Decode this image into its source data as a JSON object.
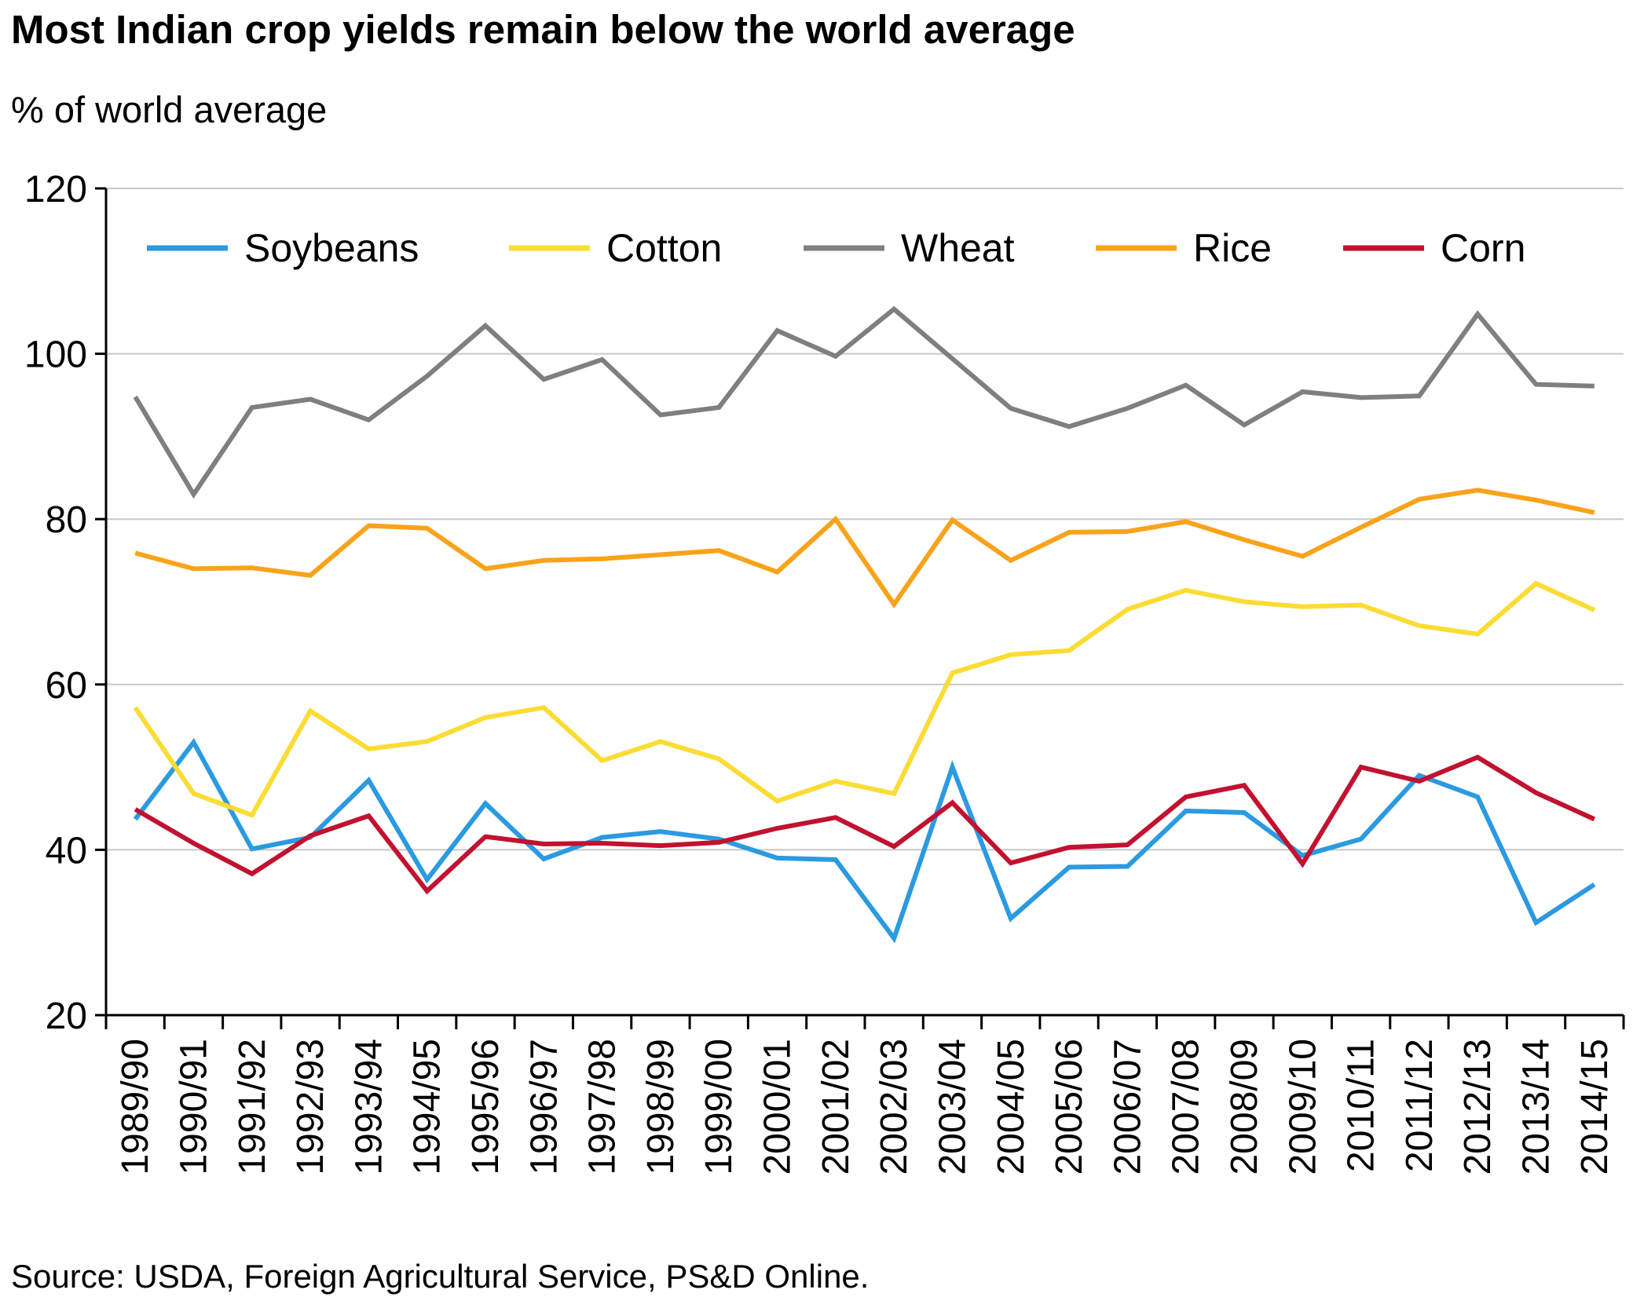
{
  "colors": {
    "soybeans": "#2b9ae0",
    "cotton": "#fbdc34",
    "wheat": "#7f7f7f",
    "rice": "#f9a31b",
    "corn": "#c11230",
    "grid": "#c8c8c8",
    "axis": "#000000"
  },
  "chart_data": {
    "type": "line",
    "title": "Most Indian crop yields remain below the world average",
    "ylabel": "% of world average",
    "xlabel": "",
    "source": "Source: USDA, Foreign Agricultural Service, PS&D Online.",
    "ylim": [
      20,
      120
    ],
    "yticks": [
      20,
      40,
      60,
      80,
      100,
      120
    ],
    "grid": "horizontal",
    "legend_position": "top",
    "categories": [
      "1989/90",
      "1990/91",
      "1991/92",
      "1992/93",
      "1993/94",
      "1994/95",
      "1995/96",
      "1996/97",
      "1997/98",
      "1998/99",
      "1999/00",
      "2000/01",
      "2001/02",
      "2002/03",
      "2003/04",
      "2004/05",
      "2005/06",
      "2006/07",
      "2007/08",
      "2008/09",
      "2009/10",
      "2010/11",
      "2011/12",
      "2012/13",
      "2013/14",
      "2014/15"
    ],
    "series": [
      {
        "name": "Soybeans",
        "color_key": "soybeans",
        "values": [
          43.7,
          53.0,
          40.1,
          41.5,
          48.4,
          36.4,
          45.6,
          38.9,
          41.5,
          42.2,
          41.3,
          39.0,
          38.8,
          29.3,
          50.0,
          31.7,
          37.9,
          38.0,
          44.7,
          44.5,
          39.3,
          41.3,
          49.0,
          46.4,
          31.2,
          35.8
        ]
      },
      {
        "name": "Cotton",
        "color_key": "cotton",
        "values": [
          57.2,
          46.8,
          44.2,
          56.8,
          52.2,
          53.1,
          56.0,
          57.2,
          50.8,
          53.1,
          51.0,
          45.9,
          48.3,
          46.8,
          61.4,
          63.6,
          64.1,
          69.1,
          71.4,
          70.0,
          69.4,
          69.6,
          67.1,
          66.1,
          72.2,
          69.0
        ]
      },
      {
        "name": "Wheat",
        "color_key": "wheat",
        "values": [
          94.8,
          83.0,
          93.5,
          94.5,
          92.0,
          97.3,
          103.4,
          96.9,
          99.3,
          92.6,
          93.5,
          102.8,
          99.7,
          105.4,
          99.4,
          93.4,
          91.2,
          93.4,
          96.2,
          91.4,
          95.4,
          94.7,
          94.9,
          104.8,
          96.3,
          96.1
        ]
      },
      {
        "name": "Rice",
        "color_key": "rice",
        "values": [
          75.9,
          74.0,
          74.1,
          73.2,
          79.2,
          78.9,
          74.0,
          75.0,
          75.2,
          75.7,
          76.2,
          73.6,
          80.0,
          69.7,
          79.9,
          75.0,
          78.4,
          78.5,
          79.7,
          77.5,
          75.5,
          79.0,
          82.4,
          83.5,
          82.3,
          80.8
        ]
      },
      {
        "name": "Corn",
        "color_key": "corn",
        "values": [
          44.9,
          40.8,
          37.1,
          41.7,
          44.1,
          35.0,
          41.6,
          40.7,
          40.8,
          40.5,
          40.9,
          42.6,
          43.9,
          40.4,
          45.7,
          38.4,
          40.3,
          40.6,
          46.4,
          47.8,
          38.3,
          50.0,
          48.3,
          51.2,
          46.9,
          43.7
        ]
      }
    ]
  }
}
